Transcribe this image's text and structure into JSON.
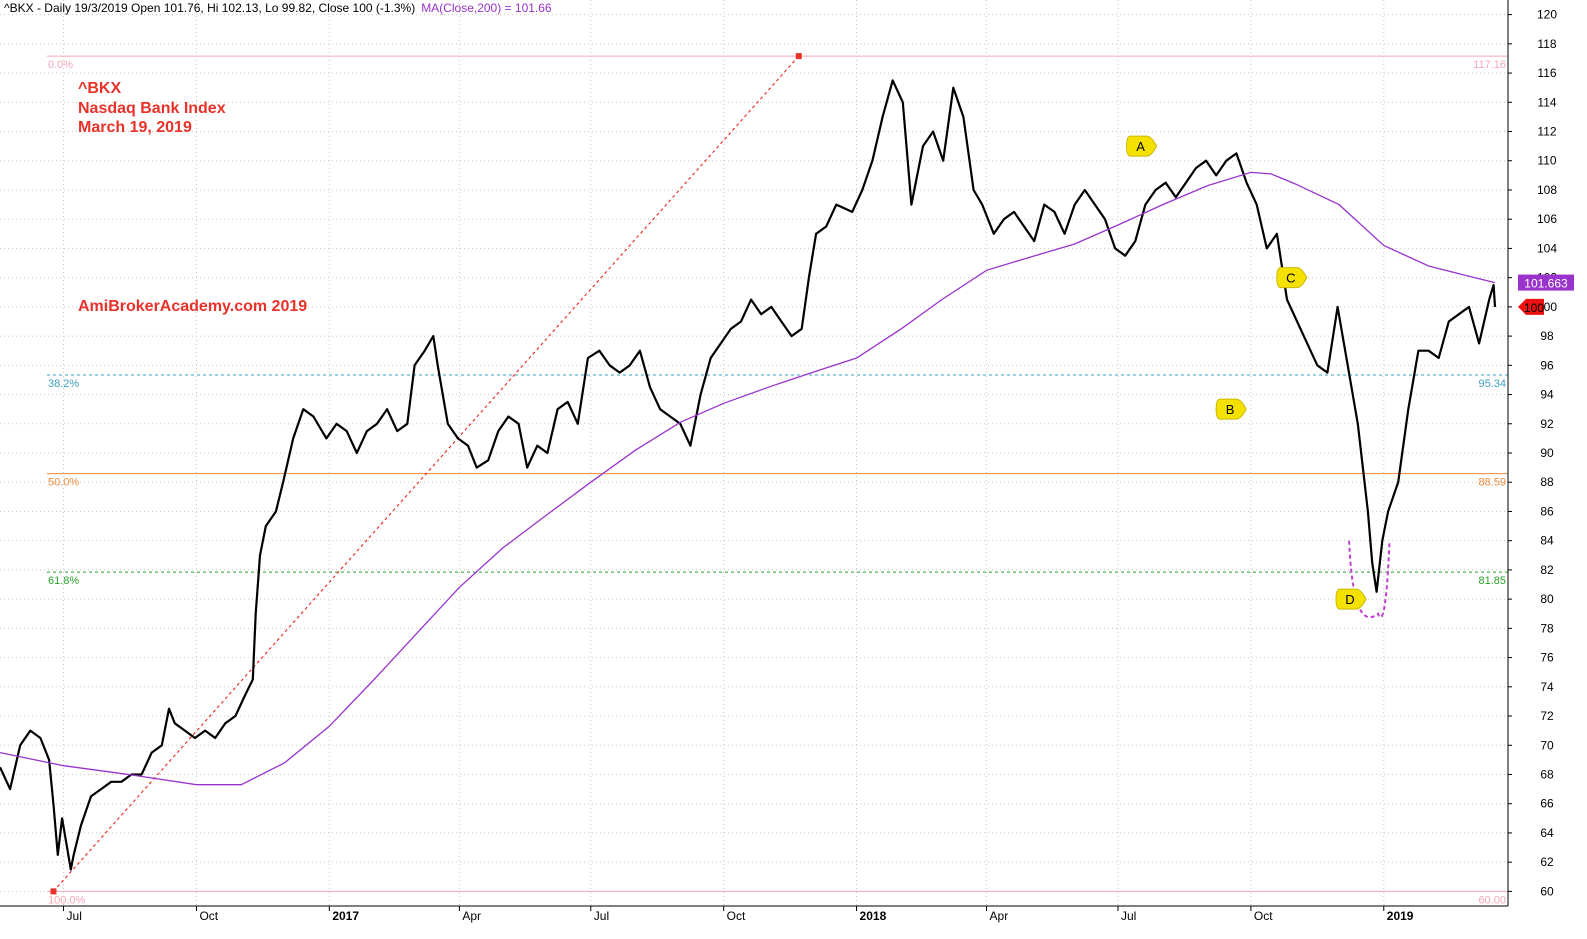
{
  "header": {
    "text": "^BKX - Daily 19/3/2019 Open 101.76, Hi 102.13, Lo 99.82, Close 100 (-1.3%)",
    "ma_text": "MA(Close,200) = 101.66"
  },
  "annotations": {
    "symbol": "^BKX",
    "name": "Nasdaq Bank Index",
    "date": "March 19, 2019",
    "watermark": "AmiBrokerAcademy.com  2019"
  },
  "colors": {
    "price": "#000000",
    "ma": "#9933cc",
    "grid": "#c8c8c8",
    "fib_0": "#f4a7b9",
    "fib_382": "#3d9fbf",
    "fib_50": "#f08a3c",
    "fib_618": "#2aa02a",
    "fib_100": "#f4a7b9",
    "trend": "#e8322a",
    "text_red": "#e8322a",
    "marker": "#f5e100",
    "cup": "#c040d0"
  },
  "chart_data": {
    "type": "line",
    "title": "^BKX - Daily",
    "xlabel": "",
    "ylabel": "",
    "ylim": [
      59,
      121
    ],
    "y_ticks": [
      "60",
      "62",
      "64",
      "66",
      "68",
      "70",
      "72",
      "74",
      "76",
      "78",
      "80",
      "82",
      "84",
      "86",
      "88",
      "90",
      "92",
      "94",
      "96",
      "98",
      "100",
      "102",
      "104",
      "106",
      "108",
      "110",
      "112",
      "114",
      "116",
      "118",
      "120"
    ],
    "x_ticks": [
      {
        "label": "Jul",
        "x": "2016-07-01"
      },
      {
        "label": "Oct",
        "x": "2016-10-01"
      },
      {
        "label": "2017",
        "x": "2017-01-01"
      },
      {
        "label": "Apr",
        "x": "2017-04-01"
      },
      {
        "label": "Jul",
        "x": "2017-07-01"
      },
      {
        "label": "Oct",
        "x": "2017-10-01"
      },
      {
        "label": "2018",
        "x": "2018-01-01"
      },
      {
        "label": "Apr",
        "x": "2018-04-01"
      },
      {
        "label": "Jul",
        "x": "2018-07-01"
      },
      {
        "label": "Oct",
        "x": "2018-10-01"
      },
      {
        "label": "2019",
        "x": "2019-01-01"
      }
    ],
    "x_range": [
      "2016-05-18",
      "2019-03-28"
    ],
    "series": [
      {
        "name": "^BKX",
        "style": "price",
        "points": [
          [
            "2016-05-18",
            68.5
          ],
          [
            "2016-05-25",
            67
          ],
          [
            "2016-06-01",
            70
          ],
          [
            "2016-06-08",
            71
          ],
          [
            "2016-06-15",
            70.5
          ],
          [
            "2016-06-21",
            69
          ],
          [
            "2016-06-24",
            66
          ],
          [
            "2016-06-27",
            62.5
          ],
          [
            "2016-06-30",
            65
          ],
          [
            "2016-07-06",
            61.5
          ],
          [
            "2016-07-08",
            62.5
          ],
          [
            "2016-07-13",
            64.5
          ],
          [
            "2016-07-20",
            66.5
          ],
          [
            "2016-07-27",
            67
          ],
          [
            "2016-08-03",
            67.5
          ],
          [
            "2016-08-10",
            67.5
          ],
          [
            "2016-08-17",
            68
          ],
          [
            "2016-08-24",
            68
          ],
          [
            "2016-08-31",
            69.5
          ],
          [
            "2016-09-07",
            70
          ],
          [
            "2016-09-12",
            72.5
          ],
          [
            "2016-09-16",
            71.5
          ],
          [
            "2016-09-23",
            71
          ],
          [
            "2016-09-30",
            70.5
          ],
          [
            "2016-10-07",
            71
          ],
          [
            "2016-10-14",
            70.5
          ],
          [
            "2016-10-21",
            71.5
          ],
          [
            "2016-10-28",
            72
          ],
          [
            "2016-11-04",
            73.5
          ],
          [
            "2016-11-09",
            74.5
          ],
          [
            "2016-11-11",
            79
          ],
          [
            "2016-11-14",
            83
          ],
          [
            "2016-11-18",
            85
          ],
          [
            "2016-11-25",
            86
          ],
          [
            "2016-11-30",
            88
          ],
          [
            "2016-12-07",
            91
          ],
          [
            "2016-12-14",
            93
          ],
          [
            "2016-12-21",
            92.5
          ],
          [
            "2016-12-30",
            91
          ],
          [
            "2017-01-06",
            92
          ],
          [
            "2017-01-13",
            91.5
          ],
          [
            "2017-01-20",
            90
          ],
          [
            "2017-01-27",
            91.5
          ],
          [
            "2017-02-03",
            92
          ],
          [
            "2017-02-10",
            93
          ],
          [
            "2017-02-17",
            91.5
          ],
          [
            "2017-02-24",
            92
          ],
          [
            "2017-03-01",
            96
          ],
          [
            "2017-03-08",
            97
          ],
          [
            "2017-03-14",
            98
          ],
          [
            "2017-03-17",
            96
          ],
          [
            "2017-03-24",
            92
          ],
          [
            "2017-03-31",
            91
          ],
          [
            "2017-04-07",
            90.5
          ],
          [
            "2017-04-13",
            89
          ],
          [
            "2017-04-21",
            89.5
          ],
          [
            "2017-04-28",
            91.5
          ],
          [
            "2017-05-05",
            92.5
          ],
          [
            "2017-05-12",
            92
          ],
          [
            "2017-05-18",
            89
          ],
          [
            "2017-05-25",
            90.5
          ],
          [
            "2017-06-01",
            90
          ],
          [
            "2017-06-08",
            93
          ],
          [
            "2017-06-15",
            93.5
          ],
          [
            "2017-06-22",
            92
          ],
          [
            "2017-06-29",
            96.5
          ],
          [
            "2017-07-07",
            97
          ],
          [
            "2017-07-14",
            96
          ],
          [
            "2017-07-21",
            95.5
          ],
          [
            "2017-07-28",
            96
          ],
          [
            "2017-08-04",
            97
          ],
          [
            "2017-08-11",
            94.5
          ],
          [
            "2017-08-18",
            93
          ],
          [
            "2017-08-25",
            92.5
          ],
          [
            "2017-09-01",
            92
          ],
          [
            "2017-09-08",
            90.5
          ],
          [
            "2017-09-15",
            94
          ],
          [
            "2017-09-22",
            96.5
          ],
          [
            "2017-09-29",
            97.5
          ],
          [
            "2017-10-06",
            98.5
          ],
          [
            "2017-10-13",
            99
          ],
          [
            "2017-10-20",
            100.5
          ],
          [
            "2017-10-27",
            99.5
          ],
          [
            "2017-11-03",
            100
          ],
          [
            "2017-11-10",
            99
          ],
          [
            "2017-11-17",
            98
          ],
          [
            "2017-11-24",
            98.5
          ],
          [
            "2017-11-29",
            102
          ],
          [
            "2017-12-04",
            105
          ],
          [
            "2017-12-11",
            105.5
          ],
          [
            "2017-12-18",
            107
          ],
          [
            "2017-12-29",
            106.5
          ],
          [
            "2018-01-05",
            108
          ],
          [
            "2018-01-12",
            110
          ],
          [
            "2018-01-19",
            113
          ],
          [
            "2018-01-26",
            115.5
          ],
          [
            "2018-02-02",
            114
          ],
          [
            "2018-02-08",
            107
          ],
          [
            "2018-02-16",
            111
          ],
          [
            "2018-02-23",
            112
          ],
          [
            "2018-03-02",
            110
          ],
          [
            "2018-03-09",
            115
          ],
          [
            "2018-03-16",
            113
          ],
          [
            "2018-03-23",
            108
          ],
          [
            "2018-03-29",
            107
          ],
          [
            "2018-04-06",
            105
          ],
          [
            "2018-04-13",
            106
          ],
          [
            "2018-04-20",
            106.5
          ],
          [
            "2018-04-27",
            105.5
          ],
          [
            "2018-05-04",
            104.5
          ],
          [
            "2018-05-11",
            107
          ],
          [
            "2018-05-18",
            106.5
          ],
          [
            "2018-05-25",
            105
          ],
          [
            "2018-06-01",
            107
          ],
          [
            "2018-06-08",
            108
          ],
          [
            "2018-06-15",
            107
          ],
          [
            "2018-06-22",
            106
          ],
          [
            "2018-06-29",
            104
          ],
          [
            "2018-07-06",
            103.5
          ],
          [
            "2018-07-13",
            104.5
          ],
          [
            "2018-07-20",
            107
          ],
          [
            "2018-07-27",
            108
          ],
          [
            "2018-08-03",
            108.5
          ],
          [
            "2018-08-10",
            107.5
          ],
          [
            "2018-08-17",
            108.5
          ],
          [
            "2018-08-24",
            109.5
          ],
          [
            "2018-08-31",
            110
          ],
          [
            "2018-09-07",
            109
          ],
          [
            "2018-09-14",
            110
          ],
          [
            "2018-09-21",
            110.5
          ],
          [
            "2018-09-28",
            108.5
          ],
          [
            "2018-10-05",
            107
          ],
          [
            "2018-10-12",
            104
          ],
          [
            "2018-10-19",
            105
          ],
          [
            "2018-10-26",
            100.5
          ],
          [
            "2018-11-02",
            99
          ],
          [
            "2018-11-09",
            97.5
          ],
          [
            "2018-11-16",
            96
          ],
          [
            "2018-11-23",
            95.5
          ],
          [
            "2018-11-30",
            100
          ],
          [
            "2018-12-07",
            96
          ],
          [
            "2018-12-14",
            92
          ],
          [
            "2018-12-21",
            86
          ],
          [
            "2018-12-24",
            82.5
          ],
          [
            "2018-12-27",
            80.5
          ],
          [
            "2018-12-31",
            84
          ],
          [
            "2019-01-04",
            86
          ],
          [
            "2019-01-11",
            88
          ],
          [
            "2019-01-18",
            93
          ],
          [
            "2019-01-25",
            97
          ],
          [
            "2019-02-01",
            97
          ],
          [
            "2019-02-08",
            96.5
          ],
          [
            "2019-02-15",
            99
          ],
          [
            "2019-02-22",
            99.5
          ],
          [
            "2019-03-01",
            100
          ],
          [
            "2019-03-08",
            97.5
          ],
          [
            "2019-03-15",
            100.5
          ],
          [
            "2019-03-18",
            101.5
          ],
          [
            "2019-03-19",
            100
          ]
        ]
      },
      {
        "name": "MA(Close,200)",
        "style": "ma",
        "points": [
          [
            "2016-05-18",
            69.5
          ],
          [
            "2016-07-01",
            68.6
          ],
          [
            "2016-08-15",
            68
          ],
          [
            "2016-10-01",
            67.3
          ],
          [
            "2016-11-01",
            67.3
          ],
          [
            "2016-12-01",
            68.8
          ],
          [
            "2017-01-01",
            71.3
          ],
          [
            "2017-02-01",
            74.5
          ],
          [
            "2017-03-01",
            77.5
          ],
          [
            "2017-04-01",
            80.8
          ],
          [
            "2017-05-01",
            83.5
          ],
          [
            "2017-06-01",
            85.8
          ],
          [
            "2017-07-01",
            88
          ],
          [
            "2017-08-01",
            90.2
          ],
          [
            "2017-09-01",
            92.1
          ],
          [
            "2017-10-01",
            93.4
          ],
          [
            "2017-11-01",
            94.5
          ],
          [
            "2017-12-01",
            95.5
          ],
          [
            "2018-01-01",
            96.5
          ],
          [
            "2018-02-01",
            98.5
          ],
          [
            "2018-03-01",
            100.5
          ],
          [
            "2018-04-01",
            102.5
          ],
          [
            "2018-05-01",
            103.4
          ],
          [
            "2018-06-01",
            104.3
          ],
          [
            "2018-07-01",
            105.6
          ],
          [
            "2018-08-01",
            107
          ],
          [
            "2018-09-01",
            108.3
          ],
          [
            "2018-10-01",
            109.2
          ],
          [
            "2018-10-15",
            109.1
          ],
          [
            "2018-11-01",
            108.4
          ],
          [
            "2018-12-01",
            107
          ],
          [
            "2019-01-01",
            104.2
          ],
          [
            "2019-02-01",
            102.8
          ],
          [
            "2019-03-01",
            102.1
          ],
          [
            "2019-03-19",
            101.66
          ]
        ]
      }
    ],
    "fibonacci": [
      {
        "level": "0.0%",
        "value": 117.16,
        "value_label": "117.16"
      },
      {
        "level": "38.2%",
        "value": 95.34,
        "value_label": "95.34"
      },
      {
        "level": "50.0%",
        "value": 88.59,
        "value_label": "88.59"
      },
      {
        "level": "61.8%",
        "value": 81.85,
        "value_label": "81.85"
      },
      {
        "level": "100.0%",
        "value": 60,
        "value_label": "60.00"
      }
    ],
    "trendline": {
      "from": [
        "2016-06-24",
        60.0
      ],
      "to": [
        "2017-11-22",
        117.16
      ]
    },
    "markers": [
      {
        "label": "A",
        "x": "2018-07-18",
        "y": 111
      },
      {
        "label": "B",
        "x": "2018-09-18",
        "y": 93
      },
      {
        "label": "C",
        "x": "2018-10-30",
        "y": 102
      },
      {
        "label": "D",
        "x": "2018-12-10",
        "y": 80
      }
    ],
    "cup": {
      "from": [
        "2018-12-08",
        84
      ],
      "bottom": [
        "2018-12-28",
        79
      ],
      "to": [
        "2019-01-05",
        84
      ]
    },
    "last_price": {
      "label": "100",
      "value": 100
    },
    "last_ma": {
      "label": "101.663",
      "value": 101.663
    }
  }
}
